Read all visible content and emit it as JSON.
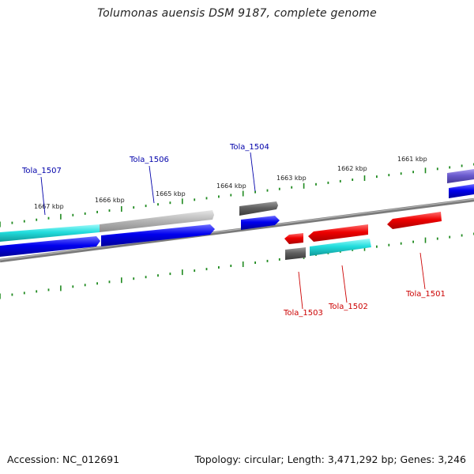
{
  "title": "Tolumonas auensis DSM 9187, complete genome",
  "footer": {
    "accession": "Accession: NC_012691",
    "summary": "Topology: circular; Length: 3,471,292 bp; Genes: 3,246"
  },
  "colors": {
    "backbone": "#7a7a7a",
    "tick": "#1f8a1f",
    "forward_label": "#0000aa",
    "reverse_label": "#cc0000",
    "blue": "#0000ee",
    "cyan": "#22dddd",
    "gray": "#b8b8b8",
    "darkgray": "#606060",
    "red": "#ee0000",
    "purple": "#6a5acd"
  },
  "kbp_labels": [
    "1661 kbp",
    "1662 kbp",
    "1663 kbp",
    "1664 kbp",
    "1665 kbp",
    "1666 kbp",
    "1667 kbp"
  ],
  "gene_labels": {
    "forward": [
      "Tola_1507",
      "Tola_1506",
      "Tola_1504"
    ],
    "reverse": [
      "Tola_1503",
      "Tola_1502",
      "Tola_1501"
    ]
  }
}
